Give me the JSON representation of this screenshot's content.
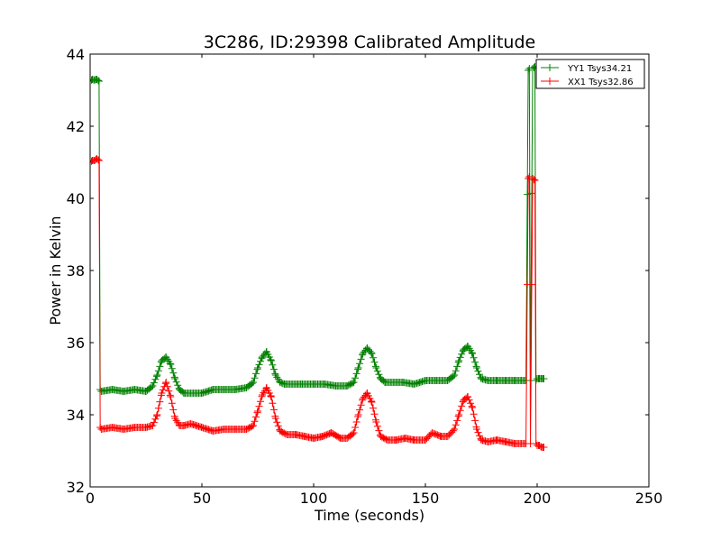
{
  "chart_data": {
    "type": "line",
    "title": "3C286, ID:29398 Calibrated Amplitude",
    "xlabel": "Time (seconds)",
    "ylabel": "Power in Kelvin",
    "xlim": [
      0,
      250
    ],
    "ylim": [
      32,
      44
    ],
    "xticks": [
      0,
      50,
      100,
      150,
      200,
      250
    ],
    "yticks": [
      32,
      34,
      36,
      38,
      40,
      42,
      44
    ],
    "grid": false,
    "legend_position": "top-right",
    "series": [
      {
        "name": "YY1 Tsys34.21",
        "color": "#008000",
        "x": [
          0,
          1,
          2,
          3,
          4,
          4.5,
          5,
          10,
          15,
          20,
          25,
          28,
          30,
          32,
          34,
          36,
          38,
          40,
          42,
          45,
          50,
          55,
          60,
          65,
          70,
          73,
          75,
          77,
          79,
          81,
          83,
          85,
          87,
          90,
          95,
          100,
          105,
          110,
          115,
          118,
          120,
          122,
          124,
          126,
          128,
          130,
          132,
          135,
          140,
          145,
          150,
          155,
          160,
          163,
          165,
          167,
          169,
          171,
          173,
          175,
          178,
          182,
          186,
          190,
          195,
          196,
          196.5,
          197,
          198,
          199,
          199.5,
          200,
          201,
          202,
          203
        ],
        "y": [
          43.25,
          43.3,
          43.28,
          43.3,
          43.25,
          34.7,
          34.65,
          34.7,
          34.65,
          34.7,
          34.65,
          34.8,
          35.1,
          35.5,
          35.6,
          35.4,
          35.0,
          34.7,
          34.6,
          34.6,
          34.6,
          34.7,
          34.7,
          34.7,
          34.75,
          34.9,
          35.3,
          35.6,
          35.75,
          35.5,
          35.1,
          34.9,
          34.85,
          34.85,
          34.85,
          34.85,
          34.85,
          34.8,
          34.8,
          34.9,
          35.3,
          35.7,
          35.85,
          35.7,
          35.3,
          35.0,
          34.9,
          34.9,
          34.9,
          34.85,
          34.95,
          34.95,
          34.95,
          35.1,
          35.5,
          35.8,
          35.9,
          35.7,
          35.3,
          35.0,
          34.95,
          34.95,
          34.95,
          34.95,
          34.95,
          43.55,
          43.6,
          34.95,
          43.6,
          43.65,
          34.95,
          35.0,
          35.0,
          35.0,
          35.0
        ]
      },
      {
        "name": "XX1 Tsys32.86",
        "color": "#ff0000",
        "x": [
          0,
          1,
          2,
          3,
          4,
          4.5,
          5,
          10,
          15,
          20,
          25,
          28,
          30,
          32,
          34,
          36,
          38,
          40,
          42,
          45,
          50,
          55,
          60,
          65,
          70,
          73,
          75,
          77,
          79,
          81,
          83,
          85,
          88,
          92,
          96,
          100,
          104,
          108,
          112,
          115,
          118,
          120,
          122,
          124,
          126,
          128,
          130,
          133,
          137,
          141,
          145,
          150,
          153,
          157,
          160,
          163,
          165,
          167,
          169,
          171,
          173,
          175,
          178,
          182,
          186,
          190,
          195,
          196,
          196.5,
          197,
          198,
          199,
          199.5,
          200,
          201,
          202,
          203
        ],
        "y": [
          41.0,
          41.05,
          41.05,
          41.1,
          41.05,
          33.65,
          33.6,
          33.65,
          33.6,
          33.65,
          33.65,
          33.7,
          34.0,
          34.6,
          34.9,
          34.5,
          33.9,
          33.7,
          33.7,
          33.75,
          33.65,
          33.55,
          33.6,
          33.6,
          33.6,
          33.7,
          34.1,
          34.55,
          34.75,
          34.5,
          33.9,
          33.55,
          33.45,
          33.45,
          33.4,
          33.35,
          33.4,
          33.5,
          33.35,
          33.35,
          33.5,
          34.0,
          34.45,
          34.6,
          34.35,
          33.8,
          33.4,
          33.3,
          33.3,
          33.35,
          33.3,
          33.3,
          33.5,
          33.4,
          33.4,
          33.6,
          34.0,
          34.4,
          34.5,
          34.2,
          33.6,
          33.3,
          33.25,
          33.3,
          33.25,
          33.2,
          33.2,
          40.55,
          40.6,
          33.2,
          40.55,
          40.5,
          33.2,
          33.15,
          33.15,
          33.1,
          33.1
        ]
      }
    ]
  }
}
